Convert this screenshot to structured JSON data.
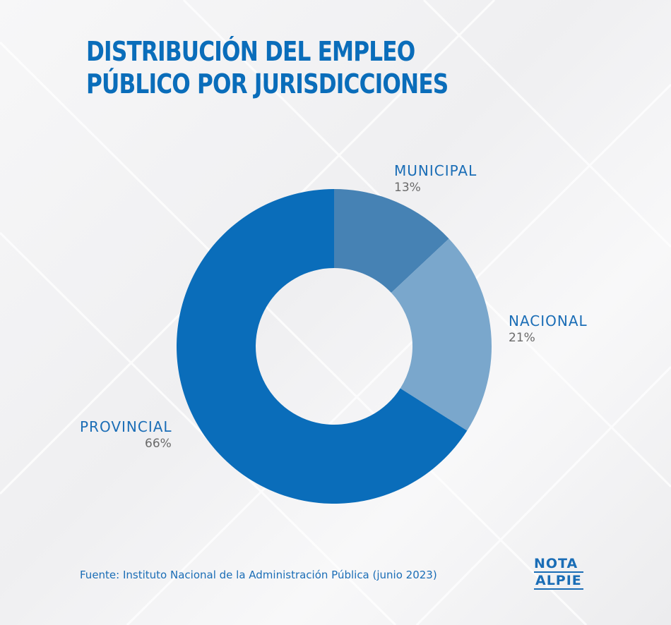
{
  "title": {
    "line1": "DISTRIBUCIÓN DEL EMPLEO",
    "line2": "PÚBLICO POR JURISDICCIONES"
  },
  "chart_data": {
    "type": "pie",
    "variant": "donut",
    "title": "DISTRIBUCIÓN DEL EMPLEO PÚBLICO POR JURISDICCIONES",
    "categories": [
      "MUNICIPAL",
      "NACIONAL",
      "PROVINCIAL"
    ],
    "values": [
      13,
      21,
      66
    ],
    "value_labels": [
      "13%",
      "21%",
      "66%"
    ],
    "colors": [
      "#4682b4",
      "#7aa7cc",
      "#0a6dba"
    ],
    "legend": "none"
  },
  "source": "Fuente: Instituto Nacional de la Administración Pública (junio 2023)",
  "logo": {
    "line1": "NOTA",
    "line2": "ALPIE",
    "color": "#1a6db6"
  },
  "colors": {
    "accent": "#0a6dba",
    "text_gray": "#6a6a6a"
  }
}
